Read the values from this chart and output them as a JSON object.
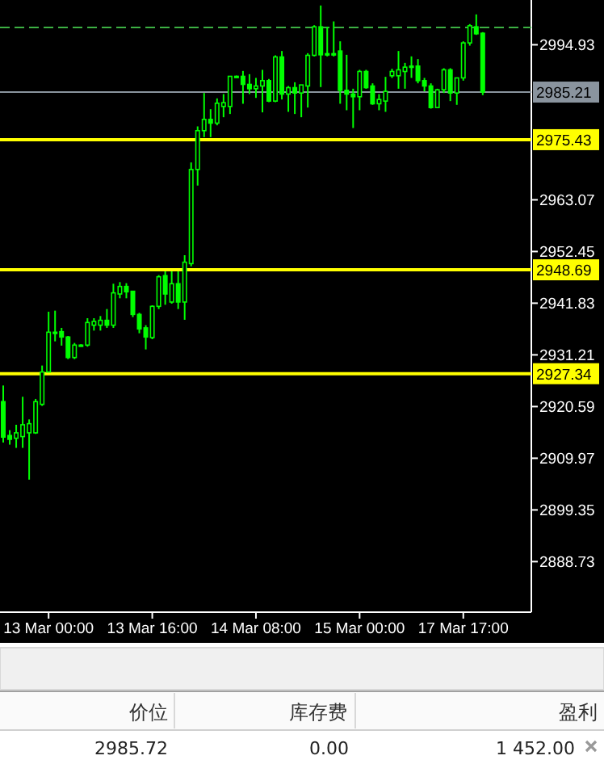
{
  "chart_data": [
    {
      "type": "candlestick",
      "color": "#00ff00",
      "categories": [
        null,
        null,
        null,
        null,
        null,
        null,
        null,
        "13 Mar 00:00",
        null,
        null,
        null,
        null,
        null,
        null,
        null,
        null,
        null,
        null,
        null,
        null,
        null,
        null,
        null,
        "13 Mar 16:00",
        null,
        null,
        null,
        null,
        null,
        null,
        null,
        null,
        null,
        null,
        null,
        null,
        null,
        null,
        null,
        "14 Mar 08:00",
        null,
        null,
        null,
        null,
        null,
        null,
        null,
        null,
        null,
        null,
        null,
        null,
        null,
        null,
        null,
        "15 Mar 00:00",
        null,
        null,
        null,
        null,
        null,
        null,
        null,
        null,
        null,
        null,
        null,
        null,
        null,
        null,
        null,
        "17 Mar 17:00",
        null,
        null,
        null,
        null,
        null,
        null,
        null,
        null,
        null,
        null
      ],
      "ohlc": [
        [
          2921.6,
          2924.92,
          2913.2,
          2914.31
        ],
        [
          2914.64,
          2915.74,
          2912.76,
          2913.86
        ],
        [
          2914.08,
          2916.85,
          2912.1,
          2915.19
        ],
        [
          2914.42,
          2922.6,
          2912.1,
          2916.85
        ],
        [
          2915.19,
          2917.95,
          2905.57,
          2917.07
        ],
        [
          2915.19,
          2922.16,
          2914.97,
          2921.6
        ],
        [
          2921.05,
          2929.02,
          2920.72,
          2927.69
        ],
        [
          2927.69,
          2940.08,
          2927.69,
          2935.87
        ],
        [
          2935.87,
          2940.3,
          2933.99,
          2935.65
        ],
        [
          2935.98,
          2936.76,
          2933.11,
          2934.88
        ],
        [
          2934.88,
          2935.1,
          2930.34,
          2930.67
        ],
        [
          2930.67,
          2933.66,
          2930.34,
          2933.22
        ],
        [
          2933.22,
          2933.4,
          2933.1,
          2933.22
        ],
        [
          2933.22,
          2938.75,
          2932.89,
          2937.86
        ],
        [
          2937.31,
          2938.75,
          2936.2,
          2938.08
        ],
        [
          2937.31,
          2939.19,
          2936.2,
          2938.31
        ],
        [
          2938.31,
          2940.63,
          2936.76,
          2937.31
        ],
        [
          2937.31,
          2945.83,
          2936.76,
          2943.95
        ],
        [
          2943.72,
          2946.16,
          2942.84,
          2945.27
        ],
        [
          2945.27,
          2945.94,
          2942.84,
          2944.17
        ],
        [
          2944.28,
          2944.28,
          2938.97,
          2939.52
        ],
        [
          2939.52,
          2939.85,
          2935.65,
          2936.54
        ],
        [
          2936.76,
          2937.31,
          2932.33,
          2934.88
        ],
        [
          2934.77,
          2941.4,
          2934.43,
          2941.18
        ],
        [
          2941.18,
          2947.6,
          2940.63,
          2947.26
        ],
        [
          2947.49,
          2948.37,
          2941.51,
          2943.72
        ],
        [
          2942.07,
          2948.37,
          2941.73,
          2945.83
        ],
        [
          2945.83,
          2948.37,
          2940.63,
          2942.07
        ],
        [
          2942.07,
          2951.69,
          2938.42,
          2950.25
        ],
        [
          2949.96,
          2970.75,
          2949.41,
          2969.3
        ],
        [
          2969.31,
          2978.16,
          2966.0,
          2977.28
        ],
        [
          2977.28,
          2985.02,
          2975.95,
          2979.6
        ],
        [
          2979.6,
          2981.7,
          2975.95,
          2978.83
        ],
        [
          2978.83,
          2983.91,
          2978.38,
          2982.92
        ],
        [
          2982.25,
          2984.8,
          2980.04,
          2983.03
        ],
        [
          2982.25,
          2988.45,
          2980.71,
          2988.45
        ],
        [
          2988.45,
          2988.6,
          2988.3,
          2988.45
        ],
        [
          2988.45,
          2989.55,
          2982.81,
          2986.79
        ],
        [
          2986.79,
          2988.89,
          2984.8,
          2985.9
        ],
        [
          2985.9,
          2988.12,
          2984.02,
          2986.46
        ],
        [
          2986.46,
          2989.78,
          2981.04,
          2987.56
        ],
        [
          2987.56,
          2987.9,
          2983.14,
          2983.36
        ],
        [
          2983.36,
          2992.76,
          2983.14,
          2992.43
        ],
        [
          2992.43,
          2993.65,
          2983.69,
          2984.8
        ],
        [
          2984.8,
          2986.46,
          2981.15,
          2986.12
        ],
        [
          2986.12,
          2987.23,
          2980.71,
          2985.02
        ],
        [
          2985.02,
          2986.68,
          2980.04,
          2986.68
        ],
        [
          2986.46,
          2993.2,
          2982.03,
          2992.76
        ],
        [
          2992.76,
          2998.95,
          2992.54,
          2998.62
        ],
        [
          2998.62,
          3003.0,
          2986.24,
          2992.87
        ],
        [
          2992.87,
          2998.62,
          2992.54,
          2993.1
        ],
        [
          2993.1,
          2999.73,
          2992.54,
          2993.0
        ],
        [
          2993.65,
          2995.64,
          2982.81,
          2985.57
        ],
        [
          2985.57,
          2992.87,
          2981.48,
          2984.8
        ],
        [
          2984.8,
          2985.9,
          2977.83,
          2984.25
        ],
        [
          2984.25,
          2989.78,
          2981.48,
          2989.44
        ],
        [
          2989.44,
          2989.78,
          2985.9,
          2986.12
        ],
        [
          2986.46,
          2987.01,
          2982.59,
          2982.81
        ],
        [
          2982.81,
          2984.8,
          2981.48,
          2983.69
        ],
        [
          2983.36,
          2988.34,
          2981.15,
          2985.35
        ],
        [
          2988.56,
          2989.99,
          2988.12,
          2989.44
        ],
        [
          2988.56,
          2993.65,
          2985.9,
          2989.78
        ],
        [
          2989.44,
          2991.21,
          2985.9,
          2990.33
        ],
        [
          2990.33,
          2992.54,
          2988.12,
          2990.55
        ],
        [
          2990.55,
          2991.99,
          2987.01,
          2987.56
        ],
        [
          2987.56,
          2988.12,
          2985.35,
          2986.46
        ],
        [
          2986.46,
          2987.01,
          2981.81,
          2982.03
        ],
        [
          2982.03,
          2985.9,
          2982.03,
          2985.68
        ],
        [
          2985.68,
          2990.11,
          2985.02,
          2989.78
        ],
        [
          2989.78,
          2990.11,
          2983.36,
          2985.02
        ],
        [
          2985.02,
          2988.12,
          2982.59,
          2988.12
        ],
        [
          2988.12,
          2995.64,
          2987.56,
          2995.31
        ],
        [
          2995.31,
          2999.18,
          2994.75,
          2998.84
        ],
        [
          2998.62,
          3001.17,
          2996.96,
          2997.19
        ],
        [
          2997.3,
          2997.52,
          2984.58,
          2985.21
        ],
        null,
        null,
        null,
        null,
        null,
        null,
        null
      ],
      "ylim": [
        2878.34,
        3004.13
      ],
      "yticks": [
        2888.73,
        2899.35,
        2909.97,
        2920.59,
        2931.21,
        2941.83,
        2952.45,
        2963.07,
        2994.93
      ],
      "ref_lines": [
        {
          "axis": "y",
          "value": 2998.5,
          "color": "#3cb043",
          "line_style": "dashed"
        },
        {
          "axis": "y",
          "value": 2985.21,
          "label": "2985.21",
          "color": "#8a949e"
        },
        {
          "axis": "y",
          "value": 2975.43,
          "label": "2975.43",
          "color": "#ffff00"
        },
        {
          "axis": "y",
          "value": 2948.69,
          "label": "2948.69",
          "color": "#ffff00"
        },
        {
          "axis": "y",
          "value": 2927.34,
          "label": "2927.34",
          "color": "#ffff00"
        }
      ],
      "tick_labels": true
    },
    {
      "type": "other",
      "annotations": [
        "价位",
        "库存费",
        "盈利",
        "2985.72",
        "0.00",
        "1 452.00"
      ]
    }
  ]
}
